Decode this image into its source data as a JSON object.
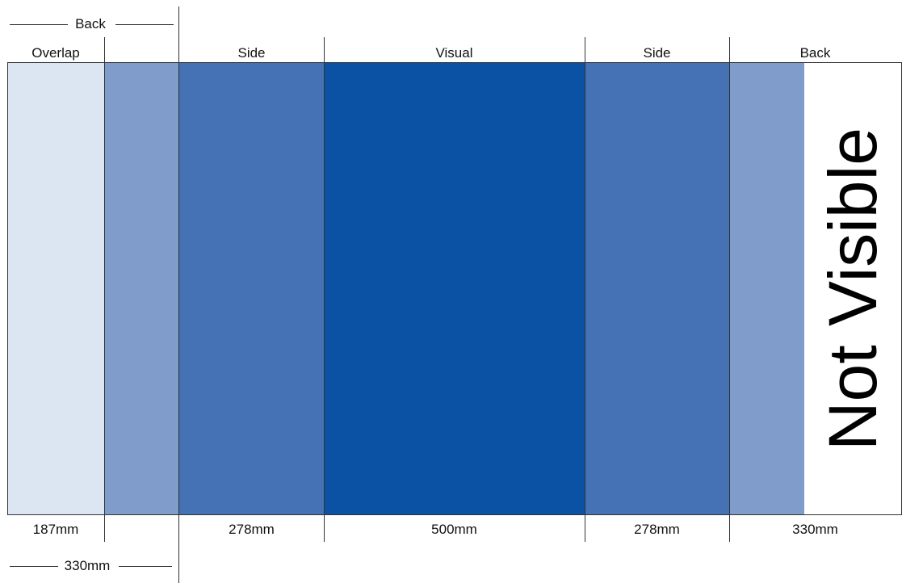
{
  "diagram": {
    "top_labels": {
      "back_left": "Back",
      "overlap": "Overlap",
      "side_left": "Side",
      "visual": "Visual",
      "side_right": "Side",
      "back_right": "Back"
    },
    "bottom_labels": {
      "overlap": "187mm",
      "side_left": "278mm",
      "visual": "500mm",
      "side_right": "278mm",
      "back_right": "330mm",
      "back_left": "330mm"
    },
    "not_visible_label": "Not Visible",
    "colors": {
      "overlap": "#dce6f2",
      "back": "#7f9cca",
      "side": "#4472b4",
      "visual": "#0c52a4"
    }
  }
}
